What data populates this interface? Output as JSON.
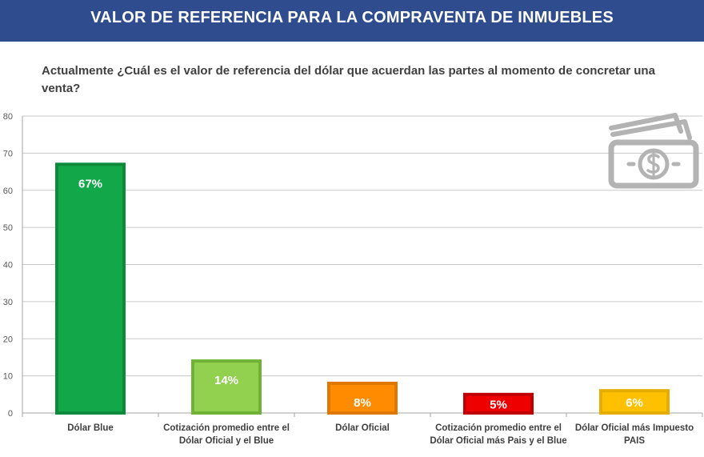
{
  "header": {
    "title": "VALOR DE REFERENCIA PARA LA COMPRAVENTA DE INMUEBLES"
  },
  "question": "Actualmente ¿Cuál es el valor de referencia del dólar que acuerdan las partes al momento de concretar una venta?",
  "icons": {
    "money": "money-bill-dollar-icon"
  },
  "chart_data": {
    "type": "bar",
    "title": "",
    "xlabel": "",
    "ylabel": "",
    "ylim": [
      0,
      80
    ],
    "yticks": [
      0,
      10,
      20,
      30,
      40,
      50,
      60,
      70,
      80
    ],
    "grid": true,
    "categories": [
      [
        "Dólar Blue"
      ],
      [
        "Cotización promedio entre el",
        "Dólar Oficial y el Blue"
      ],
      [
        "Dólar Oficial"
      ],
      [
        "Cotización promedio entre el",
        "Dólar Oficial más Pais y el Blue"
      ],
      [
        "Dólar Oficial más Impuesto",
        "PAIS"
      ]
    ],
    "values": [
      67,
      14,
      8,
      5,
      6
    ],
    "data_labels": [
      "67%",
      "14%",
      "8%",
      "5%",
      "6%"
    ],
    "colors": [
      "#12a84a",
      "#92d050",
      "#ff8c00",
      "#ee0000",
      "#ffc000"
    ],
    "border_colors": [
      "#0e8a3c",
      "#6fb236",
      "#e07800",
      "#c00000",
      "#e5ad00"
    ]
  }
}
